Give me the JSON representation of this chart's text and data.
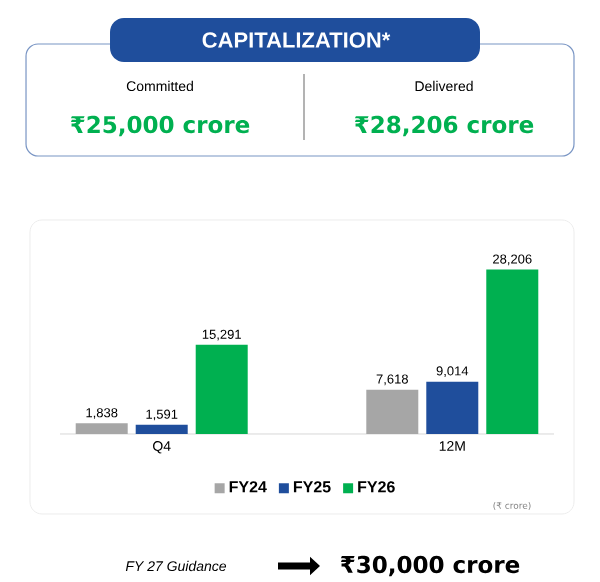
{
  "chart_data": {
    "type": "bar",
    "title": "CAPITALIZATION*",
    "categories": [
      "Q4",
      "12M"
    ],
    "series": [
      {
        "name": "FY24",
        "color": "#a6a6a6",
        "values": [
          1838,
          7618
        ],
        "value_labels": [
          "1,838",
          "7,618"
        ]
      },
      {
        "name": "FY25",
        "color": "#1f4e9c",
        "values": [
          1591,
          9014
        ],
        "value_labels": [
          "1,591",
          "9,014"
        ]
      },
      {
        "name": "FY26",
        "color": "#00b050",
        "values": [
          15291,
          28206
        ],
        "value_labels": [
          "15,291",
          "28,206"
        ]
      }
    ],
    "legend": "bottom",
    "annotations": [
      "Committed",
      "₹25,000 crore",
      "Delivered",
      "₹28,206 crore",
      "(₹ crore)",
      "FY 27 Guidance",
      "₹30,000 crore"
    ]
  }
}
